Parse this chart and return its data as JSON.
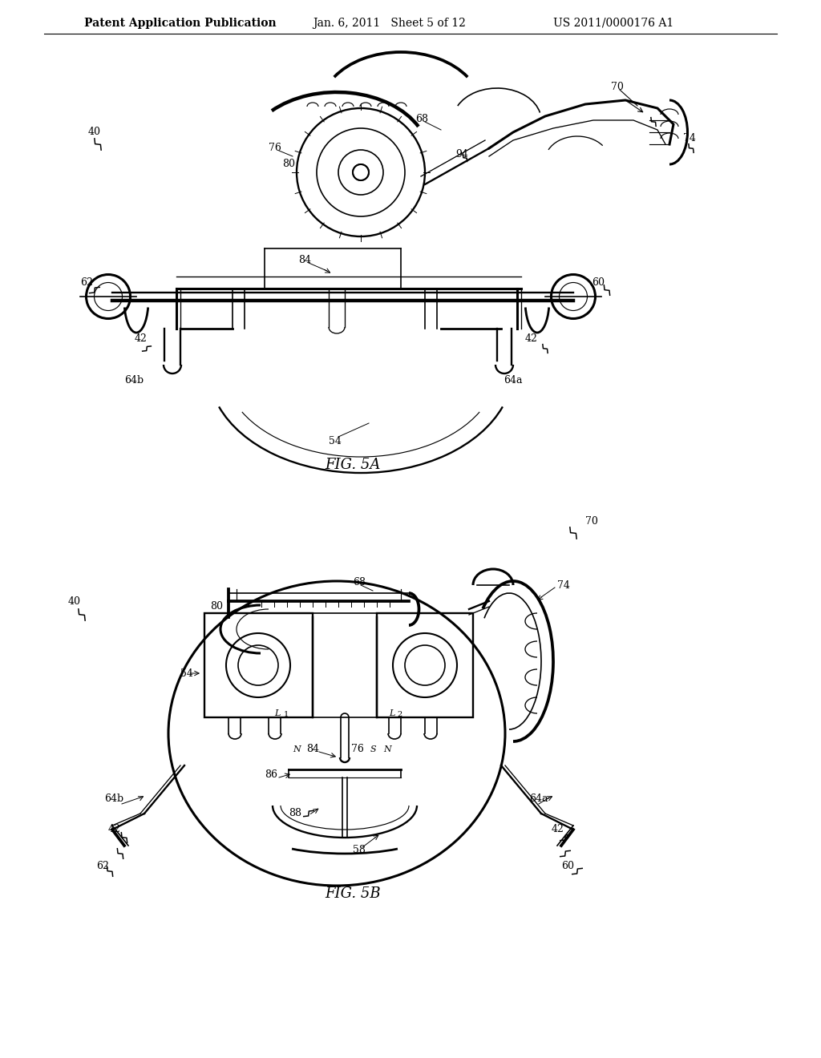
{
  "background_color": "#ffffff",
  "header_left": "Patent Application Publication",
  "header_center": "Jan. 6, 2011   Sheet 5 of 12",
  "header_right": "US 2011/0000176 A1",
  "fig_label_5a": "FIG. 5A",
  "fig_label_5b": "FIG. 5B",
  "line_color": "#000000",
  "line_width": 1.2,
  "header_font_size": 10,
  "label_font_size": 9,
  "fig_label_font_size": 13
}
